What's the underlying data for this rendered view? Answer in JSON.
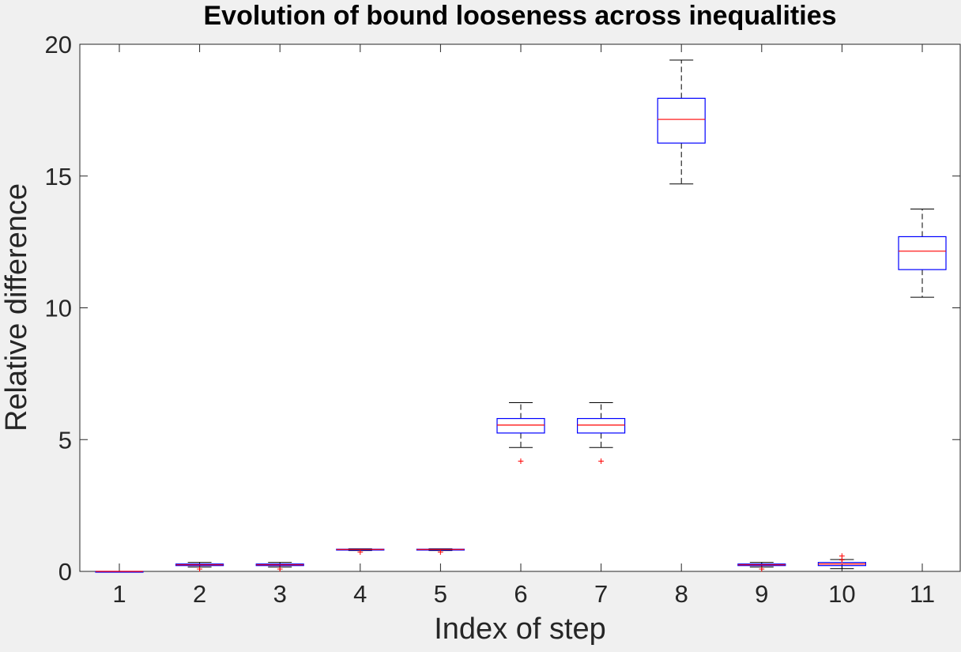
{
  "chart_data": {
    "type": "box",
    "title": "Evolution of bound looseness across inequalities",
    "xlabel": "Index of step",
    "ylabel": "Relative difference",
    "ylim": [
      0,
      20
    ],
    "yticks": [
      0,
      5,
      10,
      15,
      20
    ],
    "categories": [
      "1",
      "2",
      "3",
      "4",
      "5",
      "6",
      "7",
      "8",
      "9",
      "10",
      "11"
    ],
    "boxes": [
      {
        "category": "1",
        "whisker_low": 0.0,
        "q1": 0.0,
        "median": 0.0,
        "q3": 0.0,
        "whisker_high": 0.0,
        "outliers": []
      },
      {
        "category": "2",
        "whisker_low": 0.17,
        "q1": 0.22,
        "median": 0.25,
        "q3": 0.28,
        "whisker_high": 0.34,
        "outliers": [
          0.1
        ]
      },
      {
        "category": "3",
        "whisker_low": 0.17,
        "q1": 0.22,
        "median": 0.25,
        "q3": 0.28,
        "whisker_high": 0.34,
        "outliers": [
          0.1
        ]
      },
      {
        "category": "4",
        "whisker_low": 0.79,
        "q1": 0.82,
        "median": 0.83,
        "q3": 0.84,
        "whisker_high": 0.86,
        "outliers": [
          0.75
        ]
      },
      {
        "category": "5",
        "whisker_low": 0.79,
        "q1": 0.82,
        "median": 0.83,
        "q3": 0.84,
        "whisker_high": 0.86,
        "outliers": [
          0.75
        ]
      },
      {
        "category": "6",
        "whisker_low": 4.7,
        "q1": 5.25,
        "median": 5.55,
        "q3": 5.8,
        "whisker_high": 6.4,
        "outliers": [
          4.2
        ]
      },
      {
        "category": "7",
        "whisker_low": 4.7,
        "q1": 5.25,
        "median": 5.55,
        "q3": 5.8,
        "whisker_high": 6.4,
        "outliers": [
          4.2
        ]
      },
      {
        "category": "8",
        "whisker_low": 14.7,
        "q1": 16.25,
        "median": 17.15,
        "q3": 17.95,
        "whisker_high": 19.4,
        "outliers": []
      },
      {
        "category": "9",
        "whisker_low": 0.17,
        "q1": 0.22,
        "median": 0.25,
        "q3": 0.28,
        "whisker_high": 0.34,
        "outliers": [
          0.1
        ]
      },
      {
        "category": "10",
        "whisker_low": 0.1,
        "q1": 0.22,
        "median": 0.28,
        "q3": 0.34,
        "whisker_high": 0.45,
        "outliers": [
          0.45,
          0.6
        ]
      },
      {
        "category": "11",
        "whisker_low": 10.4,
        "q1": 11.45,
        "median": 12.15,
        "q3": 12.7,
        "whisker_high": 13.75,
        "outliers": []
      }
    ],
    "colors": {
      "box": "#0000ff",
      "median": "#ff0000",
      "whisker": "#000000",
      "outlier": "#ff0000",
      "background": "#f0f0f0",
      "plot_area": "#ffffff"
    },
    "grid": false,
    "legend": "none"
  }
}
